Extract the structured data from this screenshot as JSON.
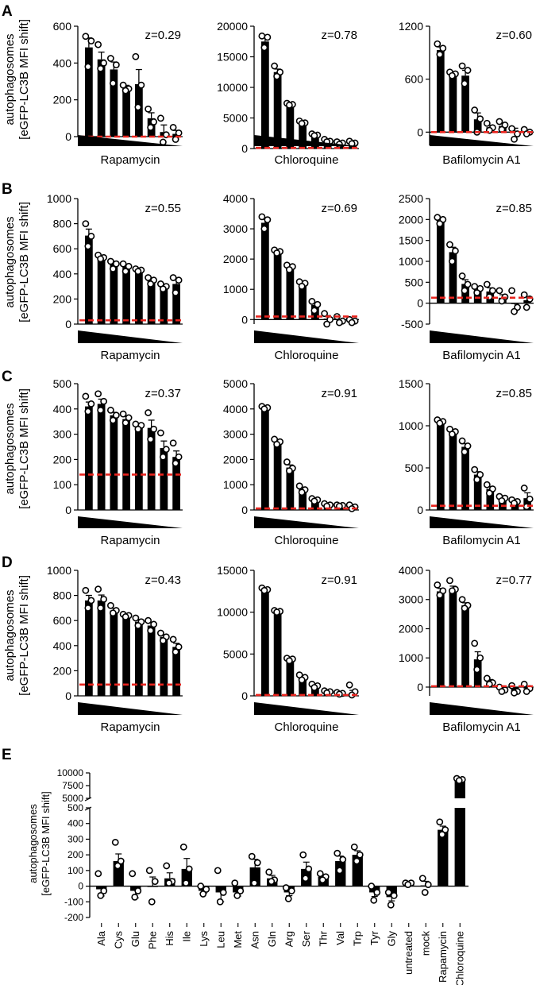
{
  "colors": {
    "bar": "#000000",
    "threshold": "#e8251f",
    "point_fill": "#ffffff"
  },
  "ylabel_line1": "autophagosomes",
  "ylabel_line2": "[eGFP-LC3B MFI shift]",
  "chart_data": [
    {
      "panel": "A",
      "type": "bar",
      "title": "Rapamycin",
      "z": "z=0.29",
      "ylim": [
        0,
        600
      ],
      "yticks": [
        0,
        200,
        400,
        600
      ],
      "ytick_labels": [
        "0",
        "200",
        "400",
        "600"
      ],
      "threshold": 0,
      "values": [
        485,
        420,
        365,
        270,
        285,
        100,
        25,
        15
      ],
      "points": [
        [
          545,
          520,
          380
        ],
        [
          500,
          400,
          370
        ],
        [
          425,
          390,
          290
        ],
        [
          280,
          260,
          250
        ],
        [
          435,
          280,
          160
        ],
        [
          150,
          80,
          50
        ],
        [
          100,
          10,
          -30
        ],
        [
          50,
          20,
          -15
        ]
      ]
    },
    {
      "panel": "A",
      "type": "bar",
      "title": "Chloroquine",
      "z": "z=0.78",
      "ylim": [
        0,
        20000
      ],
      "yticks": [
        0,
        5000,
        10000,
        15000,
        20000
      ],
      "ytick_labels": [
        "0",
        "5000",
        "10000",
        "15000",
        "20000"
      ],
      "threshold": 100,
      "values": [
        17500,
        12500,
        7300,
        4300,
        2200,
        1300,
        900,
        950
      ],
      "points": [
        [
          18400,
          18200,
          16500
        ],
        [
          13500,
          12500,
          11800
        ],
        [
          7400,
          7200,
          7100
        ],
        [
          4500,
          4200,
          4100
        ],
        [
          2400,
          2200,
          2100
        ],
        [
          1500,
          1200,
          1100
        ],
        [
          1100,
          900,
          700
        ],
        [
          1200,
          900,
          800
        ]
      ]
    },
    {
      "panel": "A",
      "type": "bar",
      "title": "Bafilomycin A1",
      "z": "z=0.60",
      "ylim": [
        -150,
        1200
      ],
      "yticks": [
        0,
        600,
        1200
      ],
      "ytick_labels": [
        "0",
        "600",
        "1200"
      ],
      "threshold": 0,
      "values": [
        930,
        660,
        640,
        145,
        55,
        70,
        10,
        5
      ],
      "points": [
        [
          1000,
          950,
          880
        ],
        [
          680,
          660,
          640
        ],
        [
          750,
          700,
          550
        ],
        [
          250,
          150,
          0
        ],
        [
          100,
          50,
          20
        ],
        [
          120,
          80,
          30
        ],
        [
          40,
          -20,
          -80
        ],
        [
          30,
          0,
          -20
        ]
      ]
    },
    {
      "panel": "B",
      "type": "bar",
      "title": "Rapamycin",
      "z": "z=0.55",
      "ylim": [
        0,
        1000
      ],
      "yticks": [
        0,
        200,
        400,
        600,
        800,
        1000
      ],
      "ytick_labels": [
        "0",
        "200",
        "400",
        "600",
        "800",
        "1000"
      ],
      "threshold": 30,
      "values": [
        705,
        540,
        480,
        460,
        430,
        350,
        300,
        320
      ],
      "points": [
        [
          800,
          700,
          620
        ],
        [
          550,
          530,
          520
        ],
        [
          500,
          480,
          440
        ],
        [
          480,
          460,
          420
        ],
        [
          440,
          430,
          420
        ],
        [
          370,
          350,
          320
        ],
        [
          320,
          300,
          280
        ],
        [
          370,
          350,
          250
        ]
      ]
    },
    {
      "panel": "B",
      "type": "bar",
      "title": "Chloroquine",
      "z": "z=0.69",
      "ylim": [
        -150,
        4000
      ],
      "yticks": [
        0,
        1000,
        2000,
        3000,
        4000
      ],
      "ytick_labels": [
        "0",
        "1000",
        "2000",
        "3000",
        "4000"
      ],
      "threshold": 100,
      "values": [
        3200,
        2250,
        1750,
        1200,
        480,
        30,
        -30,
        -70
      ],
      "points": [
        [
          3400,
          3300,
          3000
        ],
        [
          2300,
          2250,
          2200
        ],
        [
          1800,
          1750,
          1650
        ],
        [
          1250,
          1200,
          1100
        ],
        [
          600,
          500,
          300
        ],
        [
          200,
          0,
          -150
        ],
        [
          100,
          -50,
          -100
        ],
        [
          0,
          -50,
          -100
        ]
      ]
    },
    {
      "panel": "B",
      "type": "bar",
      "title": "Bafilomycin A1",
      "z": "z=0.85",
      "ylim": [
        -500,
        2500
      ],
      "yticks": [
        -500,
        0,
        500,
        1000,
        1500,
        2000,
        2500
      ],
      "ytick_labels": [
        "-500",
        "0",
        "500",
        "1000",
        "1500",
        "2000",
        "2500"
      ],
      "threshold": 130,
      "values": [
        1980,
        1220,
        460,
        320,
        280,
        130,
        -20,
        70
      ],
      "points": [
        [
          2050,
          2000,
          1900
        ],
        [
          1400,
          1250,
          1000
        ],
        [
          650,
          450,
          300
        ],
        [
          400,
          350,
          250
        ],
        [
          450,
          300,
          150
        ],
        [
          300,
          150,
          50
        ],
        [
          300,
          -100,
          -200
        ],
        [
          200,
          100,
          -100
        ]
      ]
    },
    {
      "panel": "C",
      "type": "bar",
      "title": "Rapamycin",
      "z": "z=0.37",
      "ylim": [
        0,
        500
      ],
      "yticks": [
        0,
        100,
        200,
        300,
        400,
        500
      ],
      "ytick_labels": [
        "0",
        "100",
        "200",
        "300",
        "400",
        "500"
      ],
      "threshold": 140,
      "values": [
        410,
        420,
        375,
        360,
        335,
        325,
        245,
        210
      ],
      "points": [
        [
          450,
          420,
          390
        ],
        [
          460,
          430,
          395
        ],
        [
          395,
          375,
          355
        ],
        [
          380,
          365,
          345
        ],
        [
          340,
          335,
          320
        ],
        [
          385,
          320,
          280
        ],
        [
          305,
          240,
          210
        ],
        [
          265,
          210,
          185
        ]
      ]
    },
    {
      "panel": "C",
      "type": "bar",
      "title": "Chloroquine",
      "z": "z=0.91",
      "ylim": [
        0,
        5000
      ],
      "yticks": [
        0,
        1000,
        2000,
        3000,
        4000,
        5000
      ],
      "ytick_labels": [
        "0",
        "1000",
        "2000",
        "3000",
        "4000",
        "5000"
      ],
      "threshold": 60,
      "values": [
        4050,
        2700,
        1680,
        830,
        400,
        200,
        180,
        120
      ],
      "points": [
        [
          4100,
          4050,
          4000
        ],
        [
          2800,
          2700,
          2600
        ],
        [
          1900,
          1650,
          1550
        ],
        [
          950,
          800,
          700
        ],
        [
          450,
          400,
          350
        ],
        [
          250,
          200,
          150
        ],
        [
          200,
          180,
          150
        ],
        [
          200,
          120,
          50
        ]
      ]
    },
    {
      "panel": "C",
      "type": "bar",
      "title": "Bafilomycin A1",
      "z": "z=0.85",
      "ylim": [
        0,
        1500
      ],
      "yticks": [
        0,
        500,
        1000,
        1500
      ],
      "ytick_labels": [
        "0",
        "500",
        "1000",
        "1500"
      ],
      "threshold": 50,
      "values": [
        1050,
        930,
        750,
        420,
        250,
        140,
        100,
        140
      ],
      "points": [
        [
          1070,
          1050,
          1030
        ],
        [
          960,
          930,
          900
        ],
        [
          820,
          760,
          690
        ],
        [
          480,
          420,
          360
        ],
        [
          300,
          250,
          200
        ],
        [
          160,
          140,
          110
        ],
        [
          120,
          100,
          80
        ],
        [
          260,
          130,
          40
        ]
      ]
    },
    {
      "panel": "D",
      "type": "bar",
      "title": "Rapamycin",
      "z": "z=0.43",
      "ylim": [
        0,
        1000
      ],
      "yticks": [
        0,
        200,
        400,
        600,
        800,
        1000
      ],
      "ytick_labels": [
        "0",
        "200",
        "400",
        "600",
        "800",
        "1000"
      ],
      "threshold": 90,
      "values": [
        760,
        760,
        680,
        640,
        590,
        560,
        470,
        390
      ],
      "points": [
        [
          840,
          760,
          700
        ],
        [
          850,
          770,
          700
        ],
        [
          720,
          680,
          660
        ],
        [
          650,
          640,
          630
        ],
        [
          620,
          590,
          560
        ],
        [
          600,
          570,
          520
        ],
        [
          500,
          470,
          440
        ],
        [
          450,
          390,
          350
        ]
      ]
    },
    {
      "panel": "D",
      "type": "bar",
      "title": "Chloroquine",
      "z": "z=0.91",
      "ylim": [
        0,
        15000
      ],
      "yticks": [
        0,
        5000,
        10000,
        15000
      ],
      "ytick_labels": [
        "0",
        "5000",
        "10000",
        "15000"
      ],
      "threshold": 100,
      "values": [
        12700,
        10000,
        4400,
        2200,
        1200,
        500,
        300,
        300
      ],
      "points": [
        [
          12900,
          12700,
          12600
        ],
        [
          10200,
          10100,
          10000
        ],
        [
          4500,
          4400,
          4200
        ],
        [
          2500,
          2200,
          1900
        ],
        [
          1400,
          1200,
          1000
        ],
        [
          600,
          500,
          350
        ],
        [
          400,
          300,
          200
        ],
        [
          1300,
          500,
          100
        ]
      ]
    },
    {
      "panel": "D",
      "type": "bar",
      "title": "Bafilomycin A1",
      "z": "z=0.77",
      "ylim": [
        -300,
        4000
      ],
      "yticks": [
        0,
        1000,
        2000,
        3000,
        4000
      ],
      "ytick_labels": [
        "0",
        "1000",
        "2000",
        "3000",
        "4000"
      ],
      "threshold": 30,
      "values": [
        3280,
        3350,
        2800,
        950,
        200,
        -80,
        -150,
        -50
      ],
      "points": [
        [
          3500,
          3300,
          3150
        ],
        [
          3650,
          3350,
          3300
        ],
        [
          3000,
          2800,
          2700
        ],
        [
          1500,
          1000,
          600
        ],
        [
          300,
          150,
          100
        ],
        [
          0,
          -100,
          -150
        ],
        [
          50,
          -150,
          -200
        ],
        [
          100,
          -50,
          -150
        ]
      ]
    },
    {
      "panel": "E",
      "type": "bar",
      "title": "",
      "z": "",
      "categories": [
        "Ala",
        "Cys",
        "Glu",
        "Phe",
        "His",
        "Ile",
        "Lys",
        "Leu",
        "Met",
        "Asn",
        "Gln",
        "Arg",
        "Ser",
        "Thr",
        "Val",
        "Trp",
        "Tyr",
        "Gly",
        "untreated",
        "mock",
        "Rapamycin",
        "Chloroquine"
      ],
      "values": [
        -20,
        160,
        -30,
        0,
        50,
        110,
        -30,
        -40,
        -40,
        120,
        50,
        -40,
        110,
        60,
        160,
        200,
        -40,
        -70,
        20,
        5,
        360,
        8600
      ],
      "points": [
        [
          80,
          -30,
          -60
        ],
        [
          280,
          160,
          130
        ],
        [
          80,
          -30,
          -70
        ],
        [
          100,
          30,
          -100
        ],
        [
          130,
          30,
          20
        ],
        [
          250,
          110,
          20
        ],
        [
          0,
          -20,
          -50
        ],
        [
          100,
          -40,
          -100
        ],
        [
          20,
          -30,
          -60
        ],
        [
          190,
          150,
          20
        ],
        [
          90,
          40,
          30
        ],
        [
          -10,
          -30,
          -80
        ],
        [
          200,
          110,
          50
        ],
        [
          80,
          60,
          40
        ],
        [
          210,
          170,
          100
        ],
        [
          250,
          200,
          160
        ],
        [
          0,
          -40,
          -90
        ],
        [
          -40,
          -60,
          -120
        ],
        [
          20,
          20,
          10
        ],
        [
          50,
          10,
          -40
        ],
        [
          410,
          360,
          330
        ],
        [
          8900,
          8700,
          8500
        ]
      ],
      "break": {
        "lower": [
          -200,
          500
        ],
        "upper": [
          5000,
          10000
        ]
      },
      "yticks_lower": [
        -200,
        -100,
        0,
        100,
        200,
        300,
        400,
        500
      ],
      "ytick_labels_lower": [
        "-200",
        "-100",
        "0",
        "100",
        "200",
        "300",
        "400",
        "500"
      ],
      "yticks_upper": [
        5000,
        7500,
        10000
      ],
      "ytick_labels_upper": [
        "5000",
        "7500",
        "10000"
      ]
    }
  ],
  "panel_labels": [
    "A",
    "B",
    "C",
    "D",
    "E"
  ]
}
